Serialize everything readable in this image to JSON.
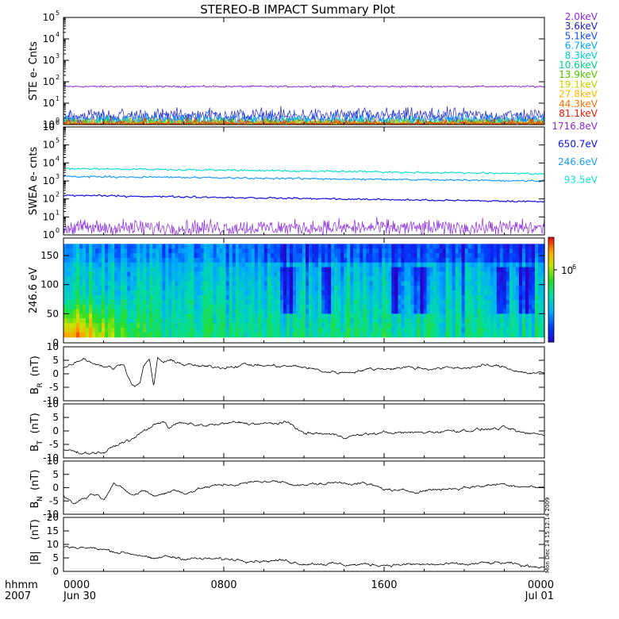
{
  "title": "STEREO-B IMPACT Summary Plot",
  "time_axis": {
    "left_label_line1": "hhmm",
    "left_label_line2": "2007",
    "ticks": [
      {
        "hour": 0,
        "top": "0000",
        "bottom": "Jun 30"
      },
      {
        "hour": 8,
        "top": "0800",
        "bottom": ""
      },
      {
        "hour": 16,
        "top": "1600",
        "bottom": ""
      },
      {
        "hour": 24,
        "top": "0000",
        "bottom": "Jul 01"
      }
    ],
    "range_hours": [
      0,
      24
    ]
  },
  "side_stamp": "Mon Dec 14 15:12:14 2009",
  "colors": {
    "trace": "#000000",
    "ste": [
      "#8a2be2",
      "#2020c0",
      "#1550ff",
      "#00a5ff",
      "#00ccd0",
      "#00d080",
      "#50c000",
      "#c8d000",
      "#ffb800",
      "#ff7000",
      "#e02000"
    ],
    "swea": [
      "#8a2be2",
      "#1010e0",
      "#1a9cff",
      "#10ded0"
    ]
  },
  "chart_data": [
    {
      "name": "ste",
      "type": "line",
      "ylabel": "STE e- Cnts",
      "yscale": "log",
      "ylim": [
        1,
        100000
      ],
      "yticks": [
        {
          "base": "10",
          "exp": "0"
        },
        {
          "base": "10",
          "exp": "1"
        },
        {
          "base": "10",
          "exp": "2"
        },
        {
          "base": "10",
          "exp": "3"
        },
        {
          "base": "10",
          "exp": "4"
        },
        {
          "base": "10",
          "exp": "5"
        }
      ],
      "series": [
        {
          "name": "2.0keV",
          "level": 60
        },
        {
          "name": "3.6keV",
          "level": 2.6
        },
        {
          "name": "5.1keV",
          "level": 1.9
        },
        {
          "name": "6.7keV",
          "level": 1.5
        },
        {
          "name": "8.3keV",
          "level": 1.3
        },
        {
          "name": "10.6keV",
          "level": 1.15
        },
        {
          "name": "13.9keV",
          "level": 1.08
        },
        {
          "name": "19.1keV",
          "level": 1.04
        },
        {
          "name": "27.8keV",
          "level": 1.02
        },
        {
          "name": "44.3keV",
          "level": 1.01
        },
        {
          "name": "81.1keV",
          "level": 1.0
        }
      ]
    },
    {
      "name": "swea",
      "type": "line",
      "ylabel": "SWEA e- cnts",
      "yscale": "log",
      "ylim": [
        1,
        1000000
      ],
      "yticks": [
        {
          "base": "10",
          "exp": "0"
        },
        {
          "base": "10",
          "exp": "1"
        },
        {
          "base": "10",
          "exp": "2"
        },
        {
          "base": "10",
          "exp": "3"
        },
        {
          "base": "10",
          "exp": "4"
        },
        {
          "base": "10",
          "exp": "5"
        },
        {
          "base": "10",
          "exp": "6"
        }
      ],
      "series": [
        {
          "name": "1716.8eV",
          "start": 2.5,
          "end": 2.5
        },
        {
          "name": "650.7eV",
          "start": 160,
          "end": 70
        },
        {
          "name": "246.6eV",
          "start": 1800,
          "end": 1000
        },
        {
          "name": "93.5eV",
          "start": 5000,
          "end": 2500
        }
      ]
    },
    {
      "name": "pitch-angle",
      "type": "heatmap",
      "ylabel": "246.6 eV",
      "ylim": [
        0,
        180
      ],
      "yticks": [
        0,
        50,
        100,
        150
      ],
      "colorbar_label": {
        "base": "10",
        "exp": "6"
      }
    },
    {
      "name": "br",
      "type": "line",
      "ylabel_main": "B",
      "ylabel_sub": "R",
      "ylabel_unit": "(nT)",
      "ylim": [
        -10,
        10
      ],
      "yticks": [
        -10,
        -5,
        0,
        5,
        10
      ],
      "knots": [
        [
          0,
          2
        ],
        [
          0.5,
          4
        ],
        [
          1,
          6
        ],
        [
          1.5,
          4
        ],
        [
          2,
          3
        ],
        [
          2.5,
          2
        ],
        [
          3,
          4
        ],
        [
          3.4,
          -4
        ],
        [
          3.8,
          -4
        ],
        [
          4,
          3
        ],
        [
          4.3,
          5
        ],
        [
          4.5,
          -5
        ],
        [
          4.7,
          6
        ],
        [
          5,
          4
        ],
        [
          5.5,
          5
        ],
        [
          6,
          3.5
        ],
        [
          7,
          2.5
        ],
        [
          8,
          2.5
        ],
        [
          9,
          3.5
        ],
        [
          10,
          3
        ],
        [
          11,
          2.8
        ],
        [
          12,
          2.5
        ],
        [
          13,
          0.8
        ],
        [
          14,
          0.5
        ],
        [
          15,
          1.5
        ],
        [
          16,
          2
        ],
        [
          17,
          2.5
        ],
        [
          18,
          2
        ],
        [
          19,
          2
        ],
        [
          20,
          2.3
        ],
        [
          21,
          3
        ],
        [
          22,
          2.5
        ],
        [
          23,
          0.5
        ],
        [
          24,
          0
        ]
      ]
    },
    {
      "name": "bt",
      "type": "line",
      "ylabel_main": "B",
      "ylabel_sub": "T",
      "ylabel_unit": "(nT)",
      "ylim": [
        -10,
        10
      ],
      "yticks": [
        -10,
        -5,
        0,
        5,
        10
      ],
      "knots": [
        [
          0,
          -7
        ],
        [
          1,
          -8
        ],
        [
          2,
          -8
        ],
        [
          2.5,
          -6
        ],
        [
          3,
          -4
        ],
        [
          3.5,
          -3
        ],
        [
          4,
          0
        ],
        [
          4.5,
          2
        ],
        [
          5,
          4
        ],
        [
          5.3,
          1
        ],
        [
          5.7,
          3
        ],
        [
          6,
          2.5
        ],
        [
          7,
          2
        ],
        [
          8,
          2.5
        ],
        [
          8.5,
          3
        ],
        [
          9,
          3
        ],
        [
          10,
          2.5
        ],
        [
          11,
          3
        ],
        [
          11.5,
          2
        ],
        [
          12,
          -1
        ],
        [
          13,
          -1
        ],
        [
          14,
          -2
        ],
        [
          15,
          -1.5
        ],
        [
          16,
          -0.5
        ],
        [
          17,
          -0.8
        ],
        [
          18,
          -0.5
        ],
        [
          19,
          0
        ],
        [
          20,
          0.3
        ],
        [
          21,
          0.6
        ],
        [
          22,
          1
        ],
        [
          23,
          -1
        ],
        [
          24,
          -1
        ]
      ]
    },
    {
      "name": "bn",
      "type": "line",
      "ylabel_main": "B",
      "ylabel_sub": "N",
      "ylabel_unit": "(nT)",
      "ylim": [
        -10,
        10
      ],
      "yticks": [
        -10,
        -5,
        0,
        5,
        10
      ],
      "knots": [
        [
          0,
          -3
        ],
        [
          0.5,
          -6
        ],
        [
          1,
          -4
        ],
        [
          1.5,
          -2
        ],
        [
          2,
          -4
        ],
        [
          2.5,
          2
        ],
        [
          3,
          -1
        ],
        [
          3.5,
          -3
        ],
        [
          4,
          -1
        ],
        [
          4.5,
          -3
        ],
        [
          5,
          -2
        ],
        [
          5.5,
          -1
        ],
        [
          6,
          -2
        ],
        [
          7,
          0
        ],
        [
          8,
          1
        ],
        [
          9,
          1.5
        ],
        [
          10,
          2.5
        ],
        [
          11,
          2
        ],
        [
          12,
          1
        ],
        [
          13,
          1.5
        ],
        [
          14,
          2
        ],
        [
          15,
          1.5
        ],
        [
          16,
          -0.5
        ],
        [
          17,
          -1.5
        ],
        [
          18,
          -1
        ],
        [
          19,
          -0.5
        ],
        [
          20,
          0
        ],
        [
          21,
          0.8
        ],
        [
          22,
          1.5
        ],
        [
          23,
          0.5
        ],
        [
          24,
          0
        ]
      ]
    },
    {
      "name": "bmag",
      "type": "line",
      "ylabel_main": "|B|",
      "ylabel_unit": "(nT)",
      "ylim": [
        0,
        20
      ],
      "yticks": [
        0,
        5,
        10,
        15,
        20
      ],
      "knots": [
        [
          0,
          9
        ],
        [
          1,
          9
        ],
        [
          2,
          8
        ],
        [
          3,
          7
        ],
        [
          4,
          6
        ],
        [
          4.5,
          4
        ],
        [
          5,
          5.5
        ],
        [
          6,
          5
        ],
        [
          7,
          4.5
        ],
        [
          8,
          4.5
        ],
        [
          9,
          4.5
        ],
        [
          10,
          4
        ],
        [
          11,
          4
        ],
        [
          12,
          3
        ],
        [
          13,
          3
        ],
        [
          14,
          2.5
        ],
        [
          15,
          2.5
        ],
        [
          16,
          2.5
        ],
        [
          17,
          2.5
        ],
        [
          18,
          2.5
        ],
        [
          19,
          2.5
        ],
        [
          20,
          2.5
        ],
        [
          21,
          3
        ],
        [
          22,
          3
        ],
        [
          23,
          2
        ],
        [
          24,
          2
        ]
      ]
    }
  ]
}
